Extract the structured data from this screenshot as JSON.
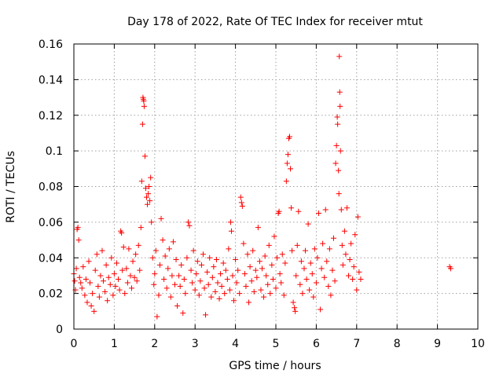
{
  "chart_data": {
    "type": "scatter",
    "title": "Day 178 of 2022, Rate Of TEC Index for receiver mtut",
    "xlabel": "GPS time / hours",
    "ylabel": "ROTI / TECUs",
    "xlim": [
      0,
      10
    ],
    "ylim": [
      0,
      0.16
    ],
    "grid": true,
    "marker": "+",
    "color": "#ff0000",
    "x_ticks": [
      "0",
      "1",
      "2",
      "3",
      "4",
      "5",
      "6",
      "7",
      "8",
      "9",
      "10"
    ],
    "y_ticks": [
      "0",
      "0.02",
      "0.04",
      "0.06",
      "0.08",
      "0.1",
      "0.12",
      "0.14",
      "0.16"
    ],
    "series": [
      {
        "name": "mtut",
        "points": [
          [
            0.0,
            0.031
          ],
          [
            0.02,
            0.027
          ],
          [
            0.04,
            0.022
          ],
          [
            0.06,
            0.034
          ],
          [
            0.08,
            0.056
          ],
          [
            0.1,
            0.057
          ],
          [
            0.12,
            0.05
          ],
          [
            0.14,
            0.029
          ],
          [
            0.17,
            0.026
          ],
          [
            0.2,
            0.023
          ],
          [
            0.23,
            0.035
          ],
          [
            0.27,
            0.019
          ],
          [
            0.3,
            0.028
          ],
          [
            0.33,
            0.015
          ],
          [
            0.37,
            0.038
          ],
          [
            0.4,
            0.026
          ],
          [
            0.43,
            0.013
          ],
          [
            0.46,
            0.02
          ],
          [
            0.5,
            0.01
          ],
          [
            0.53,
            0.033
          ],
          [
            0.57,
            0.042
          ],
          [
            0.6,
            0.024
          ],
          [
            0.63,
            0.018
          ],
          [
            0.66,
            0.03
          ],
          [
            0.7,
            0.044
          ],
          [
            0.73,
            0.027
          ],
          [
            0.77,
            0.021
          ],
          [
            0.8,
            0.036
          ],
          [
            0.83,
            0.016
          ],
          [
            0.86,
            0.029
          ],
          [
            0.9,
            0.025
          ],
          [
            0.93,
            0.04
          ],
          [
            0.97,
            0.019
          ],
          [
            1.0,
            0.031
          ],
          [
            1.03,
            0.024
          ],
          [
            1.06,
            0.037
          ],
          [
            1.1,
            0.028
          ],
          [
            1.13,
            0.022
          ],
          [
            1.16,
            0.055
          ],
          [
            1.18,
            0.054
          ],
          [
            1.2,
            0.033
          ],
          [
            1.23,
            0.046
          ],
          [
            1.26,
            0.02
          ],
          [
            1.3,
            0.034
          ],
          [
            1.33,
            0.026
          ],
          [
            1.36,
            0.045
          ],
          [
            1.4,
            0.03
          ],
          [
            1.43,
            0.023
          ],
          [
            1.46,
            0.038
          ],
          [
            1.5,
            0.029
          ],
          [
            1.53,
            0.042
          ],
          [
            1.56,
            0.027
          ],
          [
            1.6,
            0.047
          ],
          [
            1.63,
            0.033
          ],
          [
            1.66,
            0.057
          ],
          [
            1.68,
            0.083
          ],
          [
            1.7,
            0.115
          ],
          [
            1.71,
            0.13
          ],
          [
            1.72,
            0.129
          ],
          [
            1.73,
            0.128
          ],
          [
            1.74,
            0.125
          ],
          [
            1.76,
            0.097
          ],
          [
            1.78,
            0.079
          ],
          [
            1.8,
            0.074
          ],
          [
            1.82,
            0.07
          ],
          [
            1.84,
            0.076
          ],
          [
            1.86,
            0.08
          ],
          [
            1.88,
            0.072
          ],
          [
            1.9,
            0.085
          ],
          [
            1.92,
            0.06
          ],
          [
            1.95,
            0.04
          ],
          [
            1.98,
            0.025
          ],
          [
            2.0,
            0.031
          ],
          [
            2.03,
            0.044
          ],
          [
            2.06,
            0.007
          ],
          [
            2.1,
            0.019
          ],
          [
            2.13,
            0.036
          ],
          [
            2.16,
            0.062
          ],
          [
            2.2,
            0.05
          ],
          [
            2.23,
            0.028
          ],
          [
            2.26,
            0.041
          ],
          [
            2.3,
            0.023
          ],
          [
            2.33,
            0.034
          ],
          [
            2.36,
            0.045
          ],
          [
            2.4,
            0.018
          ],
          [
            2.43,
            0.03
          ],
          [
            2.46,
            0.049
          ],
          [
            2.5,
            0.025
          ],
          [
            2.53,
            0.039
          ],
          [
            2.56,
            0.013
          ],
          [
            2.6,
            0.03
          ],
          [
            2.63,
            0.024
          ],
          [
            2.66,
            0.036
          ],
          [
            2.7,
            0.009
          ],
          [
            2.73,
            0.028
          ],
          [
            2.76,
            0.02
          ],
          [
            2.8,
            0.04
          ],
          [
            2.83,
            0.06
          ],
          [
            2.86,
            0.058
          ],
          [
            2.9,
            0.033
          ],
          [
            2.93,
            0.026
          ],
          [
            2.96,
            0.044
          ],
          [
            3.0,
            0.022
          ],
          [
            3.03,
            0.031
          ],
          [
            3.06,
            0.038
          ],
          [
            3.1,
            0.019
          ],
          [
            3.13,
            0.027
          ],
          [
            3.16,
            0.036
          ],
          [
            3.2,
            0.042
          ],
          [
            3.23,
            0.023
          ],
          [
            3.26,
            0.008
          ],
          [
            3.3,
            0.032
          ],
          [
            3.33,
            0.025
          ],
          [
            3.36,
            0.04
          ],
          [
            3.4,
            0.018
          ],
          [
            3.43,
            0.029
          ],
          [
            3.46,
            0.035
          ],
          [
            3.5,
            0.021
          ],
          [
            3.53,
            0.039
          ],
          [
            3.56,
            0.026
          ],
          [
            3.6,
            0.017
          ],
          [
            3.63,
            0.031
          ],
          [
            3.66,
            0.024
          ],
          [
            3.7,
            0.037
          ],
          [
            3.73,
            0.02
          ],
          [
            3.76,
            0.033
          ],
          [
            3.8,
            0.028
          ],
          [
            3.83,
            0.045
          ],
          [
            3.86,
            0.022
          ],
          [
            3.88,
            0.06
          ],
          [
            3.9,
            0.055
          ],
          [
            3.93,
            0.03
          ],
          [
            3.96,
            0.016
          ],
          [
            4.0,
            0.039
          ],
          [
            4.03,
            0.026
          ],
          [
            4.06,
            0.033
          ],
          [
            4.1,
            0.02
          ],
          [
            4.13,
            0.074
          ],
          [
            4.15,
            0.071
          ],
          [
            4.17,
            0.069
          ],
          [
            4.2,
            0.048
          ],
          [
            4.23,
            0.031
          ],
          [
            4.26,
            0.024
          ],
          [
            4.3,
            0.042
          ],
          [
            4.33,
            0.015
          ],
          [
            4.36,
            0.035
          ],
          [
            4.4,
            0.027
          ],
          [
            4.43,
            0.044
          ],
          [
            4.46,
            0.021
          ],
          [
            4.5,
            0.033
          ],
          [
            4.53,
            0.029
          ],
          [
            4.56,
            0.057
          ],
          [
            4.6,
            0.038
          ],
          [
            4.63,
            0.022
          ],
          [
            4.66,
            0.034
          ],
          [
            4.7,
            0.018
          ],
          [
            4.73,
            0.041
          ],
          [
            4.76,
            0.03
          ],
          [
            4.8,
            0.025
          ],
          [
            4.83,
            0.047
          ],
          [
            4.86,
            0.02
          ],
          [
            4.9,
            0.036
          ],
          [
            4.93,
            0.028
          ],
          [
            4.96,
            0.052
          ],
          [
            5.0,
            0.023
          ],
          [
            5.03,
            0.04
          ],
          [
            5.06,
            0.065
          ],
          [
            5.08,
            0.066
          ],
          [
            5.1,
            0.031
          ],
          [
            5.13,
            0.026
          ],
          [
            5.16,
            0.042
          ],
          [
            5.2,
            0.019
          ],
          [
            5.23,
            0.037
          ],
          [
            5.26,
            0.083
          ],
          [
            5.28,
            0.093
          ],
          [
            5.3,
            0.098
          ],
          [
            5.32,
            0.107
          ],
          [
            5.34,
            0.108
          ],
          [
            5.36,
            0.09
          ],
          [
            5.38,
            0.068
          ],
          [
            5.4,
            0.044
          ],
          [
            5.43,
            0.015
          ],
          [
            5.46,
            0.012
          ],
          [
            5.48,
            0.01
          ],
          [
            5.5,
            0.03
          ],
          [
            5.53,
            0.047
          ],
          [
            5.56,
            0.066
          ],
          [
            5.6,
            0.025
          ],
          [
            5.63,
            0.038
          ],
          [
            5.66,
            0.02
          ],
          [
            5.7,
            0.034
          ],
          [
            5.73,
            0.044
          ],
          [
            5.76,
            0.028
          ],
          [
            5.8,
            0.059
          ],
          [
            5.83,
            0.022
          ],
          [
            5.86,
            0.037
          ],
          [
            5.9,
            0.031
          ],
          [
            5.93,
            0.018
          ],
          [
            5.96,
            0.045
          ],
          [
            6.0,
            0.026
          ],
          [
            6.03,
            0.04
          ],
          [
            6.06,
            0.065
          ],
          [
            6.1,
            0.011
          ],
          [
            6.13,
            0.034
          ],
          [
            6.16,
            0.048
          ],
          [
            6.2,
            0.029
          ],
          [
            6.23,
            0.067
          ],
          [
            6.26,
            0.038
          ],
          [
            6.3,
            0.024
          ],
          [
            6.33,
            0.045
          ],
          [
            6.36,
            0.019
          ],
          [
            6.4,
            0.033
          ],
          [
            6.43,
            0.051
          ],
          [
            6.46,
            0.027
          ],
          [
            6.48,
            0.093
          ],
          [
            6.5,
            0.103
          ],
          [
            6.52,
            0.119
          ],
          [
            6.53,
            0.115
          ],
          [
            6.55,
            0.089
          ],
          [
            6.56,
            0.076
          ],
          [
            6.57,
            0.153
          ],
          [
            6.58,
            0.133
          ],
          [
            6.59,
            0.125
          ],
          [
            6.6,
            0.1
          ],
          [
            6.62,
            0.067
          ],
          [
            6.64,
            0.047
          ],
          [
            6.66,
            0.036
          ],
          [
            6.7,
            0.055
          ],
          [
            6.73,
            0.042
          ],
          [
            6.76,
            0.068
          ],
          [
            6.8,
            0.03
          ],
          [
            6.83,
            0.039
          ],
          [
            6.86,
            0.048
          ],
          [
            6.9,
            0.028
          ],
          [
            6.93,
            0.035
          ],
          [
            6.96,
            0.053
          ],
          [
            7.0,
            0.022
          ],
          [
            7.03,
            0.063
          ],
          [
            7.06,
            0.032
          ],
          [
            7.1,
            0.028
          ],
          [
            9.3,
            0.035
          ],
          [
            9.33,
            0.034
          ]
        ]
      }
    ]
  }
}
